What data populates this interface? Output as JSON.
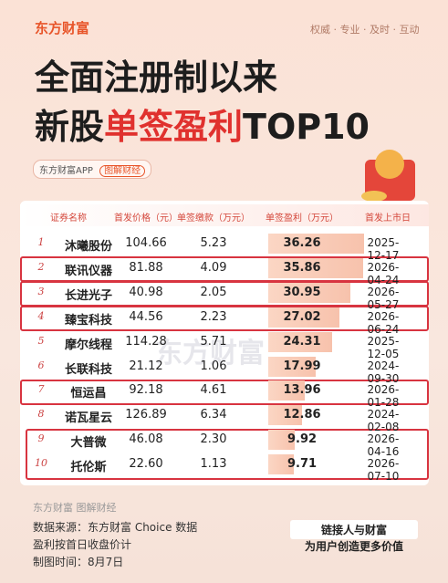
{
  "header": {
    "logo": "东方财富",
    "slogan": "权威 · 专业 · 及时 · 互动",
    "title_line1": "全面注册制以来",
    "title_line2_a": "新股",
    "title_line2_b": "单签盈利",
    "title_line2_c": "TOP10",
    "app": "东方财富APP",
    "tag": "图解财经"
  },
  "table": {
    "columns": [
      "证券名称",
      "首发价格（元）",
      "单签缴款（万元）",
      "单签盈利（万元）",
      "首发上市日"
    ],
    "watermark": "东方财富",
    "rows": [
      {
        "rank": "1",
        "name": "沐曦股份",
        "price": "104.66",
        "payment": "5.23",
        "profit": 36.26,
        "date": "2025-12-17"
      },
      {
        "rank": "2",
        "name": "联讯仪器",
        "price": "81.88",
        "payment": "4.09",
        "profit": 35.86,
        "date": "2026-04-24"
      },
      {
        "rank": "3",
        "name": "长进光子",
        "price": "40.98",
        "payment": "2.05",
        "profit": 30.95,
        "date": "2026-05-27"
      },
      {
        "rank": "4",
        "name": "臻宝科技",
        "price": "44.56",
        "payment": "2.23",
        "profit": 27.02,
        "date": "2026-06-24"
      },
      {
        "rank": "5",
        "name": "摩尔线程",
        "price": "114.28",
        "payment": "5.71",
        "profit": 24.31,
        "date": "2025-12-05"
      },
      {
        "rank": "6",
        "name": "长联科技",
        "price": "21.12",
        "payment": "1.06",
        "profit": 17.99,
        "date": "2024-09-30"
      },
      {
        "rank": "7",
        "name": "恒运昌",
        "price": "92.18",
        "payment": "4.61",
        "profit": 13.96,
        "date": "2026-01-28"
      },
      {
        "rank": "8",
        "name": "诺瓦星云",
        "price": "126.89",
        "payment": "6.34",
        "profit": 12.86,
        "date": "2024-02-08"
      },
      {
        "rank": "9",
        "name": "大普微",
        "price": "46.08",
        "payment": "2.30",
        "profit": 9.92,
        "date": "2026-04-16"
      },
      {
        "rank": "10",
        "name": "托伦斯",
        "price": "22.60",
        "payment": "1.13",
        "profit": 9.71,
        "date": "2026-07-10"
      }
    ]
  },
  "footer": {
    "brand": "东方财富 图解财经",
    "source": "数据来源：东方财富 Choice 数据",
    "note": "盈利按首日收盘价计",
    "date": "制图时间：8月7日",
    "slogan1": "链接人与财富",
    "slogan2": "为用户创造更多价值"
  }
}
